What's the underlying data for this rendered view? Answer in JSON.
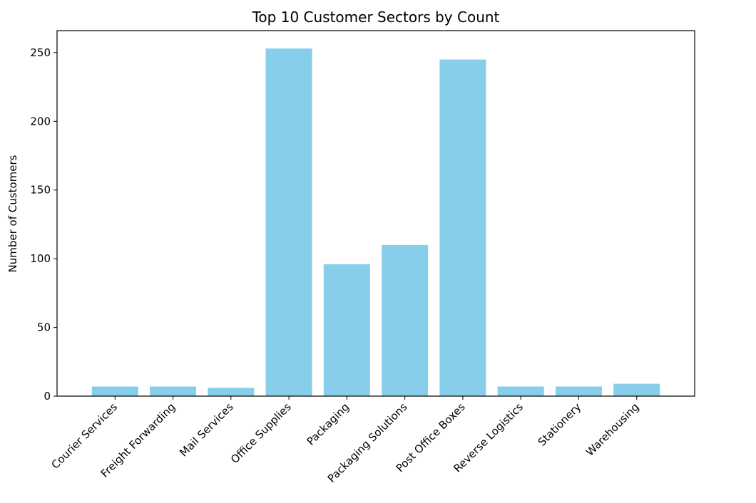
{
  "chart_data": {
    "type": "bar",
    "title": "Top 10 Customer Sectors by Count",
    "xlabel": "",
    "ylabel": "Number of Customers",
    "categories": [
      "Courier Services",
      "Freight Forwarding",
      "Mail Services",
      "Office Supplies",
      "Packaging",
      "Packaging Solutions",
      "Post Office Boxes",
      "Reverse Logistics",
      "Stationery",
      "Warehousing"
    ],
    "values": [
      7,
      7,
      6,
      253,
      96,
      110,
      245,
      7,
      7,
      9
    ],
    "ylim": [
      0,
      266
    ],
    "yticks": [
      0,
      50,
      100,
      150,
      200,
      250
    ],
    "grid": false,
    "bar_color": "#87ceeb"
  }
}
